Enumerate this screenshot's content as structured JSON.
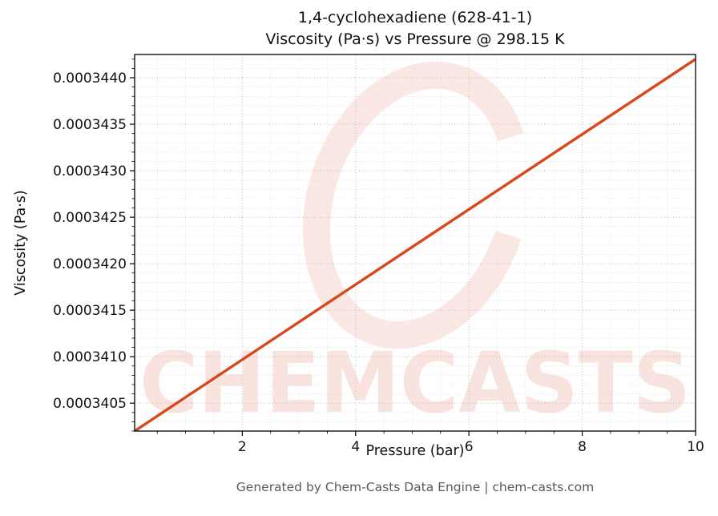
{
  "chart_data": {
    "type": "line",
    "title": [
      "1,4-cyclohexadiene (628-41-1)",
      "Viscosity (Pa·s) vs Pressure @ 298.15 K"
    ],
    "xlabel": "Pressure (bar)",
    "ylabel": "Viscosity (Pa·s)",
    "xlim": [
      0.1,
      10
    ],
    "ylim": [
      0.0003402,
      0.00034425
    ],
    "xticks": [
      2,
      4,
      6,
      8,
      10
    ],
    "xtick_labels": [
      "2",
      "4",
      "6",
      "8",
      "10"
    ],
    "yticks": [
      0.0003405,
      0.000341,
      0.0003415,
      0.000342,
      0.0003425,
      0.000343,
      0.0003435,
      0.000344
    ],
    "ytick_labels": [
      "0.0003405",
      "0.0003410",
      "0.0003415",
      "0.0003420",
      "0.0003425",
      "0.0003430",
      "0.0003435",
      "0.0003440"
    ],
    "grid": true,
    "line_color": "#d9481c",
    "series": [
      {
        "name": "Viscosity vs Pressure",
        "x": [
          0.1,
          1,
          2,
          3,
          4,
          5,
          6,
          7,
          8,
          9,
          10
        ],
        "y": [
          0.0003402,
          0.000340564,
          0.000340968,
          0.000341372,
          0.000341776,
          0.00034218,
          0.000342584,
          0.000342988,
          0.000343392,
          0.000343796,
          0.0003442
        ]
      }
    ]
  },
  "watermark": {
    "text": "CHEMCASTS",
    "color": "#dd4b33"
  },
  "footer": {
    "text": "Generated by Chem-Casts Data Engine | chem-casts.com"
  }
}
